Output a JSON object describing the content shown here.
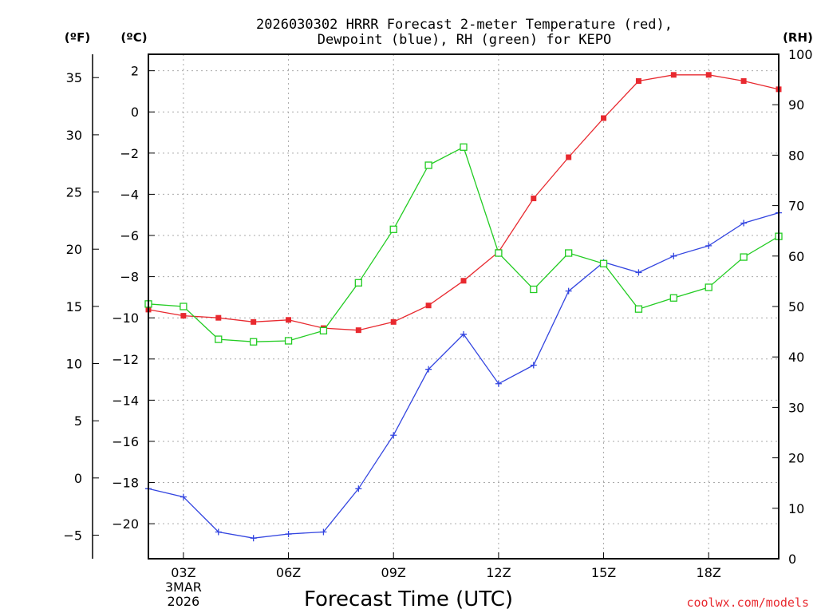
{
  "chart_data": {
    "type": "line",
    "title_lines": [
      "2026030302 HRRR Forecast 2-meter Temperature (red),",
      "Dewpoint (blue), RH (green) for KEPO"
    ],
    "xlabel": "Forecast Time (UTC)",
    "credit": "coolwx.com/models",
    "x_hours": [
      2,
      3,
      4,
      5,
      6,
      7,
      8,
      9,
      10,
      11,
      12,
      13,
      14,
      15,
      16,
      17,
      18,
      19,
      20
    ],
    "xlim": [
      2,
      20
    ],
    "x_ticks": [
      {
        "hour": 3,
        "label": "03Z",
        "sub": [
          "3MAR",
          "2026"
        ]
      },
      {
        "hour": 6,
        "label": "06Z"
      },
      {
        "hour": 9,
        "label": "09Z"
      },
      {
        "hour": 12,
        "label": "12Z"
      },
      {
        "hour": 15,
        "label": "15Z"
      },
      {
        "hour": 18,
        "label": "18Z"
      }
    ],
    "axes": {
      "celsius": {
        "unit_label": "(ºC)",
        "ylim": [
          -21.7,
          2.8
        ],
        "ticks": [
          "2",
          "0",
          "−2",
          "−4",
          "−6",
          "−8",
          "−10",
          "−12",
          "−14",
          "−16",
          "−18",
          "−20"
        ]
      },
      "fahrenheit": {
        "unit_label": "(ºF)",
        "ticks": [
          "35",
          "30",
          "25",
          "20",
          "15",
          "10",
          "5",
          "0",
          "−5"
        ]
      },
      "rh": {
        "unit_label": "(RH)",
        "ylim": [
          0,
          100
        ],
        "ticks": [
          "100",
          "90",
          "80",
          "70",
          "60",
          "50",
          "40",
          "30",
          "20",
          "10",
          "0"
        ]
      }
    },
    "series": [
      {
        "name": "Temperature",
        "axis": "celsius",
        "color": "#e8292f",
        "marker": "filled-square",
        "values": [
          -9.6,
          -9.9,
          -10.0,
          -10.2,
          -10.1,
          -10.5,
          -10.6,
          -10.2,
          -9.4,
          -8.2,
          -6.8,
          -4.2,
          -2.2,
          -0.3,
          1.5,
          1.8,
          1.8,
          1.5,
          1.1
        ]
      },
      {
        "name": "Dewpoint",
        "axis": "celsius",
        "color": "#3345e0",
        "marker": "plus",
        "values": [
          -18.3,
          -18.7,
          -20.4,
          -20.7,
          -20.5,
          -20.4,
          -18.3,
          -15.7,
          -12.5,
          -10.8,
          -13.2,
          -12.3,
          -8.7,
          -7.3,
          -7.8,
          -7.0,
          -6.5,
          -5.4,
          -4.9
        ]
      },
      {
        "name": "RH",
        "axis": "rh",
        "color": "#22cc22",
        "marker": "open-square",
        "values": [
          50.5,
          50.0,
          43.5,
          43.0,
          43.2,
          45.2,
          54.7,
          65.3,
          78.0,
          81.6,
          60.6,
          53.4,
          60.6,
          58.5,
          49.5,
          51.7,
          53.8,
          59.8,
          63.9
        ]
      }
    ]
  }
}
